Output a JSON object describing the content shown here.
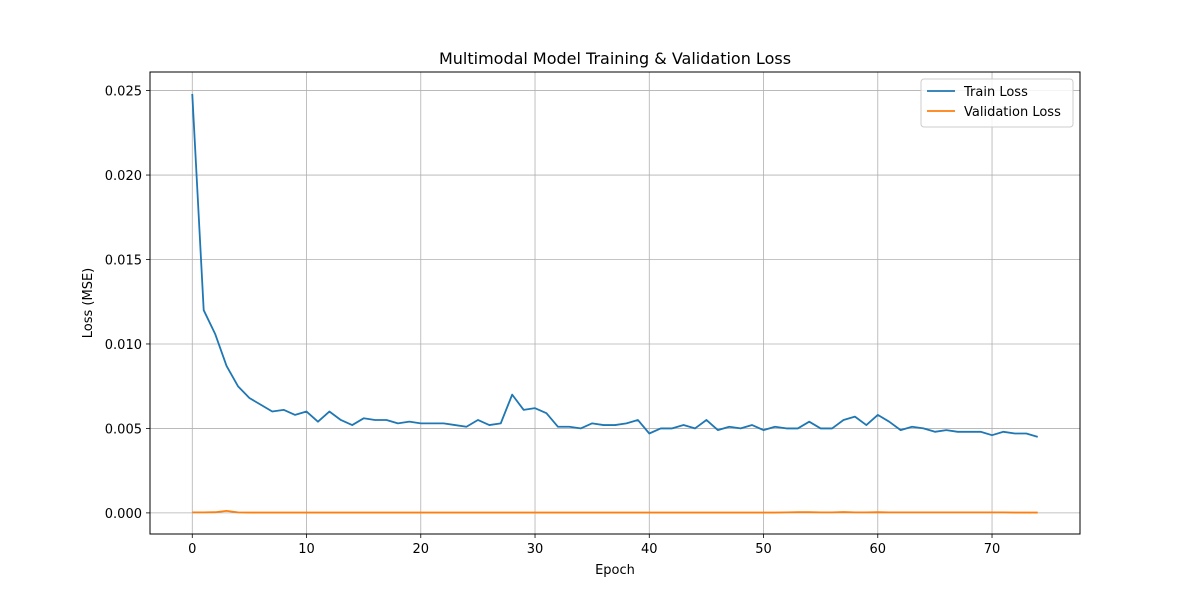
{
  "chart_data": {
    "type": "line",
    "title": "Multimodal Model Training & Validation Loss",
    "xlabel": "Epoch",
    "ylabel": "Loss (MSE)",
    "xlim": [
      -3.7,
      77.7
    ],
    "ylim": [
      -0.00125,
      0.0261
    ],
    "xticks": [
      0,
      10,
      20,
      30,
      40,
      50,
      60,
      70
    ],
    "yticks": [
      0.0,
      0.005,
      0.01,
      0.015,
      0.02,
      0.025
    ],
    "ytick_labels": [
      "0.000",
      "0.005",
      "0.010",
      "0.015",
      "0.020",
      "0.025"
    ],
    "grid": true,
    "legend_position": "top-right",
    "x": [
      0,
      1,
      2,
      3,
      4,
      5,
      6,
      7,
      8,
      9,
      10,
      11,
      12,
      13,
      14,
      15,
      16,
      17,
      18,
      19,
      20,
      21,
      22,
      23,
      24,
      25,
      26,
      27,
      28,
      29,
      30,
      31,
      32,
      33,
      34,
      35,
      36,
      37,
      38,
      39,
      40,
      41,
      42,
      43,
      44,
      45,
      46,
      47,
      48,
      49,
      50,
      51,
      52,
      53,
      54,
      55,
      56,
      57,
      58,
      59,
      60,
      61,
      62,
      63,
      64,
      65,
      66,
      67,
      68,
      69,
      70,
      71,
      72,
      73,
      74
    ],
    "series": [
      {
        "name": "Train Loss",
        "color": "#1f77b4",
        "values": [
          0.0248,
          0.012,
          0.0106,
          0.0087,
          0.0075,
          0.0068,
          0.0064,
          0.006,
          0.0061,
          0.0058,
          0.006,
          0.0054,
          0.006,
          0.0055,
          0.0052,
          0.0056,
          0.0055,
          0.0055,
          0.0053,
          0.0054,
          0.0053,
          0.0053,
          0.0053,
          0.0052,
          0.0051,
          0.0055,
          0.0052,
          0.0053,
          0.007,
          0.0061,
          0.0062,
          0.0059,
          0.0051,
          0.0051,
          0.005,
          0.0053,
          0.0052,
          0.0052,
          0.0053,
          0.0055,
          0.0047,
          0.005,
          0.005,
          0.0052,
          0.005,
          0.0055,
          0.0049,
          0.0051,
          0.005,
          0.0052,
          0.0049,
          0.0051,
          0.005,
          0.005,
          0.0054,
          0.005,
          0.005,
          0.0055,
          0.0057,
          0.0052,
          0.0058,
          0.0054,
          0.0049,
          0.0051,
          0.005,
          0.0048,
          0.0049,
          0.0048,
          0.0048,
          0.0048,
          0.0046,
          0.0048,
          0.0047,
          0.0047,
          0.0045
        ]
      },
      {
        "name": "Validation Loss",
        "color": "#ff7f0e",
        "values": [
          3e-05,
          3e-05,
          4e-05,
          0.00012,
          3e-05,
          2e-05,
          2e-05,
          2e-05,
          2e-05,
          2e-05,
          2e-05,
          2e-05,
          2e-05,
          2e-05,
          2e-05,
          2e-05,
          2e-05,
          2e-05,
          2e-05,
          2e-05,
          2e-05,
          2e-05,
          2e-05,
          2e-05,
          2e-05,
          2e-05,
          2e-05,
          2e-05,
          2e-05,
          2e-05,
          2e-05,
          2e-05,
          2e-05,
          2e-05,
          2e-05,
          2e-05,
          2e-05,
          2e-05,
          2e-05,
          2e-05,
          2e-05,
          2e-05,
          2e-05,
          2e-05,
          2e-05,
          2e-05,
          2e-05,
          2e-05,
          2e-05,
          2e-05,
          2e-05,
          2e-05,
          3e-05,
          4e-05,
          4e-05,
          3e-05,
          3e-05,
          5e-05,
          3e-05,
          3e-05,
          4e-05,
          3e-05,
          3e-05,
          3e-05,
          3e-05,
          3e-05,
          3e-05,
          3e-05,
          3e-05,
          3e-05,
          3e-05,
          3e-05,
          2e-05,
          2e-05,
          2e-05
        ]
      }
    ]
  }
}
